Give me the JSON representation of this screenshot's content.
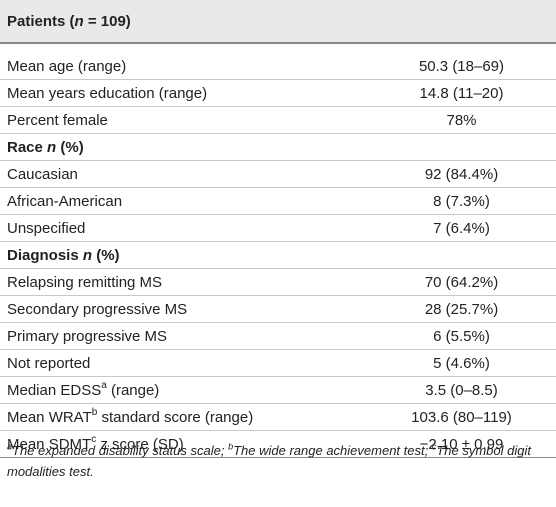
{
  "header": {
    "prefix": "Patients (",
    "n": "n",
    "suffix": " = 109)"
  },
  "rows": [
    {
      "label": "Mean age (range)",
      "value": "50.3 (18–69)"
    },
    {
      "label": "Mean years education (range)",
      "value": "14.8 (11–20)"
    },
    {
      "label": "Percent female",
      "value": "78%"
    },
    {
      "section": "Race",
      "n": "n",
      "suffix": " (%)"
    },
    {
      "label": "Caucasian",
      "value": "92 (84.4%)"
    },
    {
      "label": "African-American",
      "value": "8 (7.3%)"
    },
    {
      "label": "Unspecified",
      "value": "7 (6.4%)"
    },
    {
      "section": "Diagnosis",
      "n": "n",
      "suffix": " (%)"
    },
    {
      "label": "Relapsing remitting MS",
      "value": "70 (64.2%)"
    },
    {
      "label": "Secondary progressive MS",
      "value": "28 (25.7%)"
    },
    {
      "label": "Primary progressive MS",
      "value": "6 (5.5%)"
    },
    {
      "label": "Not reported",
      "value": "5 (4.6%)"
    },
    {
      "label": "Median EDSS",
      "sup": "a",
      "after": " (range)",
      "value": "3.5 (0–8.5)"
    },
    {
      "label": "Mean WRAT",
      "sup": "b",
      "after": " standard score (range)",
      "value": "103.6 (80–119)"
    },
    {
      "label": "Mean SDMT",
      "sup": "c",
      "after": " z score (SD)",
      "value": "−2.10 ± 0.99"
    }
  ],
  "footnotes": [
    {
      "mark": "a",
      "text": "The expanded disability status scale; "
    },
    {
      "mark": "b",
      "text": "The wide range achievement test; "
    },
    {
      "mark": "c",
      "text": "The symbol digit modalities test."
    }
  ]
}
